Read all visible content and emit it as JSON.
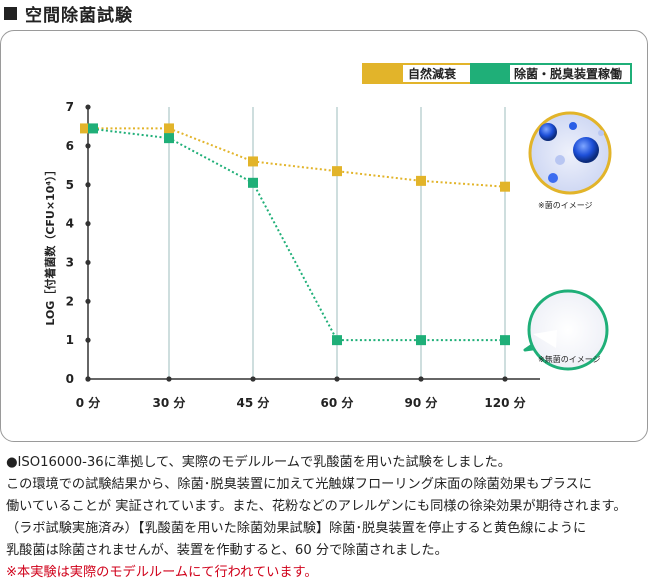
{
  "heading": {
    "text": "空間除菌試験"
  },
  "chart_data": {
    "type": "line",
    "categories": [
      "0 分",
      "30 分",
      "45 分",
      "60 分",
      "90 分",
      "120 分"
    ],
    "ylim": [
      0,
      7
    ],
    "yticks": [
      "0",
      "1",
      "2",
      "3",
      "4",
      "5",
      "6",
      "7"
    ],
    "ylabel": "LOG［付着菌数（CFU×10⁴）］",
    "xlabel": "",
    "grid": "vertical lines at categories",
    "legend": "top-right",
    "series": [
      {
        "name": "自然減衰",
        "color": "#e2b42a",
        "values": [
          6.45,
          6.45,
          5.6,
          5.35,
          5.1,
          4.95
        ]
      },
      {
        "name": "除菌・脱臭装置稼働",
        "color": "#1faf78",
        "values": [
          6.45,
          6.2,
          5.05,
          1.0,
          1.0,
          1.0
        ]
      }
    ],
    "annotations": [
      "※菌のイメージ",
      "※無菌のイメージ"
    ]
  },
  "notes": {
    "line1": "●ISO16000-36に準拠して、実際のモデルルームで乳酸菌を用いた試験をしました。",
    "line2": "この環境での試験結果から、除菌･脱臭装置に加えて光触媒フローリング床面の除菌効果もプラスに",
    "line3": "働いていることが 実証されています。また、花粉などのアレルゲンにも同様の徐染効果が期待されます。",
    "line4": "（ラボ試験実施済み）【乳酸菌を用いた除菌効果試験】除菌･脱臭装置を停止すると黄色線にように",
    "line5": "乳酸菌は除菌されませんが、装置を作動すると、60 分で除菌されました。",
    "line6": "※本実験は実際のモデルルームにて行われています。"
  }
}
